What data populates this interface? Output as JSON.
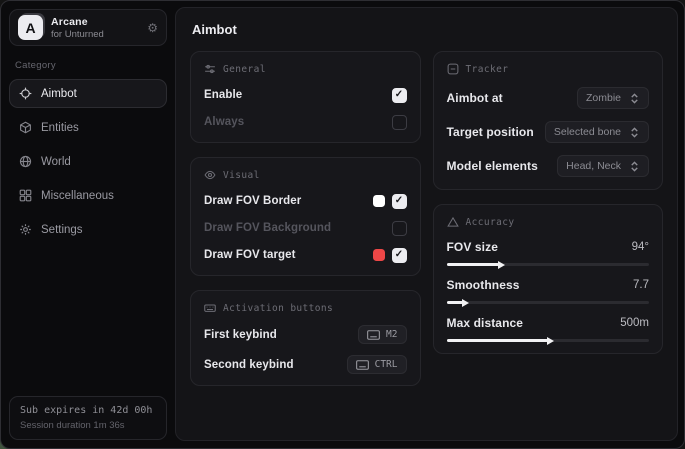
{
  "sidebar": {
    "brand": {
      "logo_letter": "A",
      "title": "Arcane",
      "subtitle": "for Unturned"
    },
    "category_label": "Category",
    "items": [
      {
        "label": "Aimbot",
        "icon": "crosshair-icon",
        "active": true
      },
      {
        "label": "Entities",
        "icon": "cube-icon",
        "active": false
      },
      {
        "label": "World",
        "icon": "globe-icon",
        "active": false
      },
      {
        "label": "Miscellaneous",
        "icon": "grid-icon",
        "active": false
      },
      {
        "label": "Settings",
        "icon": "gear-icon",
        "active": false
      }
    ],
    "footer": {
      "line1": "Sub expires in 42d 00h",
      "line2": "Session duration 1m 36s"
    }
  },
  "main": {
    "title": "Aimbot",
    "sections": {
      "general": {
        "title": "General",
        "icon": "sliders-icon",
        "rows": [
          {
            "label": "Enable",
            "checked": true,
            "enabled": true
          },
          {
            "label": "Always",
            "checked": false,
            "enabled": false
          }
        ]
      },
      "visual": {
        "title": "Visual",
        "icon": "eye-icon",
        "rows": [
          {
            "label": "Draw FOV Border",
            "swatch": "#ffffff",
            "checked": true,
            "enabled": true
          },
          {
            "label": "Draw FOV Background",
            "swatch": null,
            "checked": false,
            "enabled": false
          },
          {
            "label": "Draw FOV target",
            "swatch": "#ee4747",
            "checked": true,
            "enabled": true
          }
        ]
      },
      "activation": {
        "title": "Activation buttons",
        "icon": "keyboard-icon",
        "rows": [
          {
            "label": "First keybind",
            "key": "M2"
          },
          {
            "label": "Second keybind",
            "key": "CTRL"
          }
        ]
      },
      "tracker": {
        "title": "Tracker",
        "icon": "box-minus-icon",
        "rows": [
          {
            "label": "Aimbot at",
            "value": "Zombie"
          },
          {
            "label": "Target position",
            "value": "Selected bone"
          },
          {
            "label": "Model elements",
            "value": "Head, Neck"
          }
        ]
      },
      "accuracy": {
        "title": "Accuracy",
        "icon": "triangle-icon",
        "rows": [
          {
            "label": "FOV size",
            "value": "94°",
            "percent": 26
          },
          {
            "label": "Smoothness",
            "value": "7.7",
            "percent": 8
          },
          {
            "label": "Max distance",
            "value": "500m",
            "percent": 50
          }
        ]
      }
    }
  },
  "colors": {
    "accent_red": "#ee4747",
    "checkbox_on": "#ececf0",
    "slider_fill": "#f2f2f4",
    "card_bg": "#17171b",
    "panel_bg": "#141417"
  }
}
